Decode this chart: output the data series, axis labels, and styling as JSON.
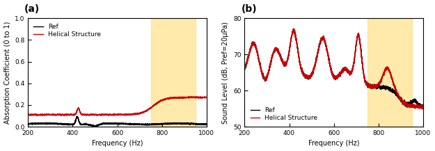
{
  "fig_width": 6.25,
  "fig_height": 2.17,
  "dpi": 100,
  "highlight_a": [
    750,
    950
  ],
  "highlight_b": [
    750,
    950
  ],
  "highlight_color": "#FFD966",
  "highlight_alpha": 0.55,
  "panel_a": {
    "label": "(a)",
    "ylabel": "Absorption Coefficient (0 to 1)",
    "xlabel": "Frequency (Hz)",
    "ylim": [
      0,
      1.0
    ],
    "xlim": [
      200,
      1000
    ],
    "yticks": [
      0.0,
      0.2,
      0.4,
      0.6,
      0.8,
      1.0
    ],
    "xticks": [
      200,
      400,
      600,
      800,
      1000
    ]
  },
  "panel_b": {
    "label": "(b)",
    "ylabel": "Sound Level (dB, Pref=20μPa)",
    "xlabel": "Frequency (Hz)",
    "ylim": [
      50,
      80
    ],
    "xlim": [
      200,
      1000
    ],
    "yticks": [
      50,
      60,
      70,
      80
    ],
    "xticks": [
      200,
      400,
      600,
      800,
      1000
    ]
  },
  "ref_color": "#000000",
  "helical_color": "#cc0000",
  "line_width": 1.0,
  "legend_fontsize": 6.5,
  "axis_fontsize": 7,
  "tick_fontsize": 6.5,
  "label_fontsize": 10
}
